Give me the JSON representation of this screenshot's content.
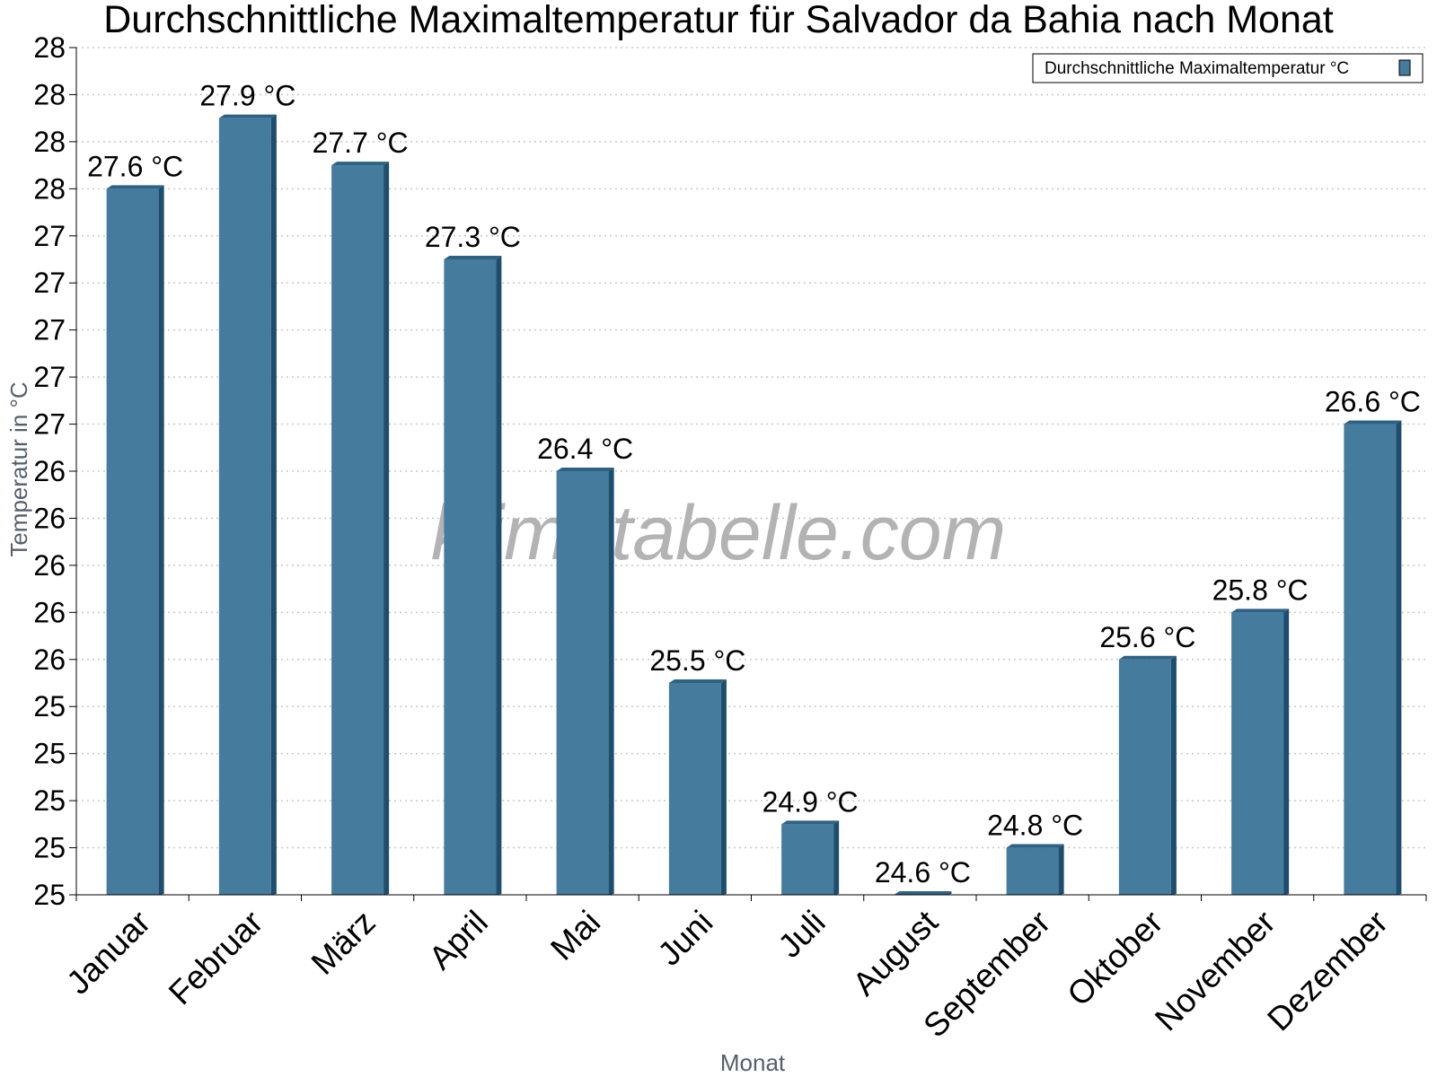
{
  "chart_data": {
    "type": "bar",
    "title": "Durchschnittliche Maximaltemperatur für Salvador da Bahia nach Monat",
    "xlabel": "Monat",
    "ylabel": "Temperatur in °C",
    "categories": [
      "Januar",
      "Februar",
      "März",
      "April",
      "Mai",
      "Juni",
      "Juli",
      "August",
      "September",
      "Oktober",
      "November",
      "Dezember"
    ],
    "series": [
      {
        "name": "Durchschnittliche Maximaltemperatur °C",
        "values": [
          27.6,
          27.9,
          27.7,
          27.3,
          26.4,
          25.5,
          24.9,
          24.6,
          24.8,
          25.6,
          25.8,
          26.6
        ],
        "labels": [
          "27.6 °C",
          "27.9 °C",
          "27.7 °C",
          "27.3 °C",
          "26.4 °C",
          "25.5 °C",
          "24.9 °C",
          "24.6 °C",
          "24.8 °C",
          "25.6 °C",
          "25.8 °C",
          "26.6 °C"
        ]
      }
    ],
    "ylim": [
      24.6,
      28.2
    ],
    "yticks": [
      24.6,
      24.8,
      25.0,
      25.2,
      25.4,
      25.6,
      25.8,
      26.0,
      26.2,
      26.4,
      26.6,
      26.8,
      27.0,
      27.2,
      27.4,
      27.6,
      27.8,
      28.0,
      28.2
    ],
    "ytick_labels": [
      "25",
      "25",
      "25",
      "25",
      "25",
      "26",
      "26",
      "26",
      "26",
      "26",
      "27",
      "27",
      "27",
      "27",
      "27",
      "28",
      "28",
      "28",
      "28"
    ],
    "grid": true,
    "legend": "top-right",
    "watermark": "klimatabelle.com",
    "colors": {
      "bar_face": "#457b9d",
      "bar_side": "#1d4e6e",
      "bar_top": "#2d6285",
      "grid": "#c8c8c8",
      "axis": "#000000"
    }
  }
}
